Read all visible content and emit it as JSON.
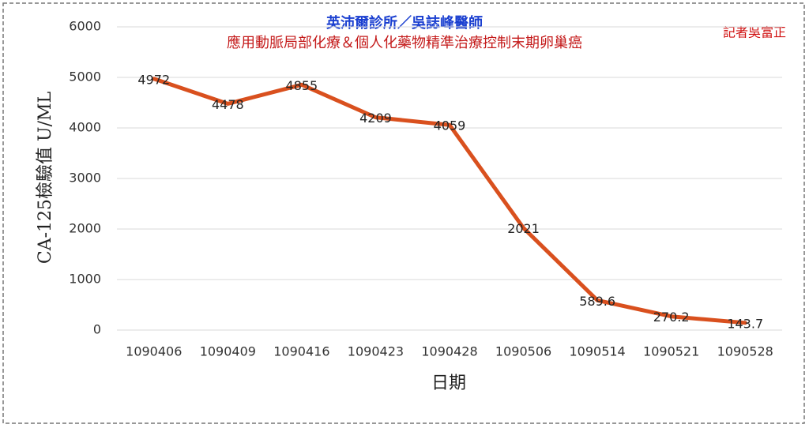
{
  "chart_data": {
    "type": "line",
    "title": "英沛爾診所／吳誌峰醫師",
    "subtitle": "應用動脈局部化療＆個人化藥物精準治療控制末期卵巢癌",
    "annotation": "記者吳富正",
    "y_label": "CA-125檢驗值 U/ML",
    "x_label": "日期",
    "categories": [
      "1090406",
      "1090409",
      "1090416",
      "1090423",
      "1090428",
      "1090506",
      "1090514",
      "1090521",
      "1090528"
    ],
    "series": [
      {
        "name": "CA-125",
        "color": "#d9501e",
        "values": [
          4972,
          4478,
          4855,
          4209,
          4059,
          2021,
          589.6,
          270.2,
          143.7
        ]
      }
    ],
    "ylim": [
      0,
      6000
    ],
    "yticks": [
      0,
      1000,
      2000,
      3000,
      4000,
      5000,
      6000
    ],
    "grid": true
  }
}
